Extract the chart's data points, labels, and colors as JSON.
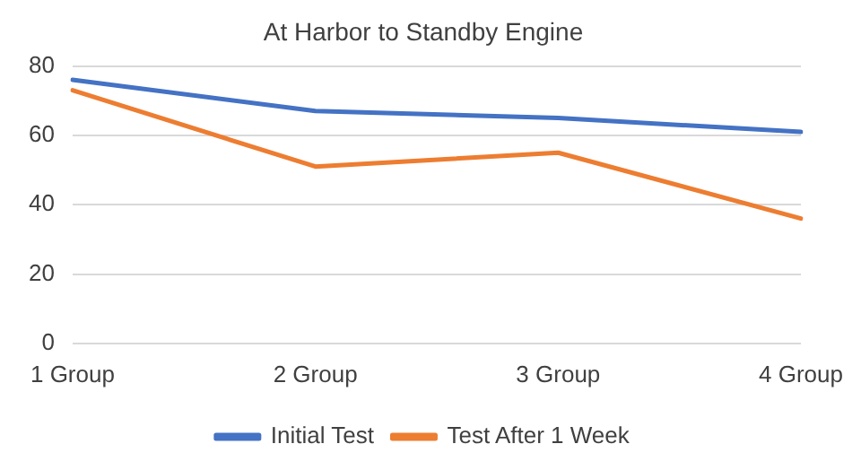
{
  "chart_data": {
    "type": "line",
    "title": "At Harbor to Standby Engine",
    "categories": [
      "1 Group",
      "2 Group",
      "3 Group",
      "4 Group"
    ],
    "series": [
      {
        "name": "Initial Test",
        "color": "#4472c4",
        "values": [
          76,
          67,
          65,
          61
        ]
      },
      {
        "name": "Test After 1 Week",
        "color": "#ed7d31",
        "values": [
          73,
          51,
          55,
          36
        ]
      }
    ],
    "ylim": [
      0,
      80
    ],
    "yticks": [
      0,
      20,
      40,
      60,
      80
    ],
    "grid": "y",
    "legend": "bottom",
    "marker": "none"
  }
}
